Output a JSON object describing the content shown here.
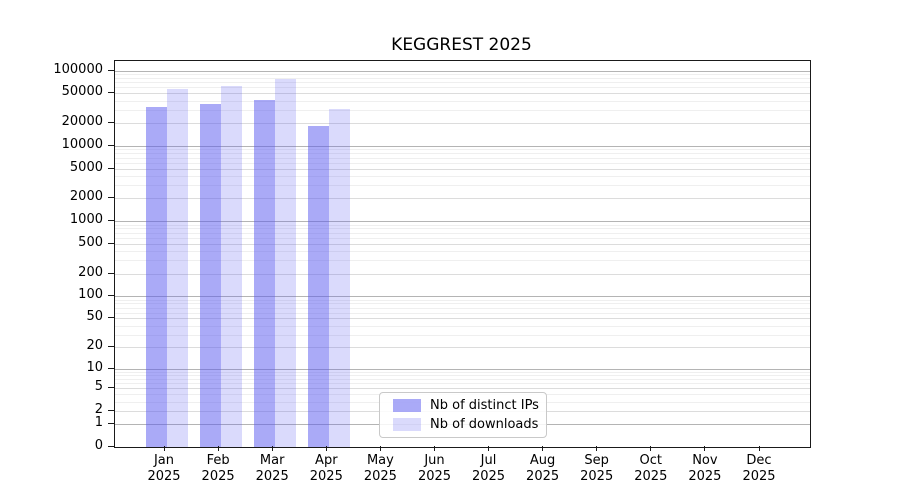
{
  "chart_data": {
    "type": "bar",
    "title": "KEGGREST 2025",
    "categories": [
      "Jan",
      "Feb",
      "Mar",
      "Apr",
      "May",
      "Jun",
      "Jul",
      "Aug",
      "Sep",
      "Oct",
      "Nov",
      "Dec"
    ],
    "x_tick_year": "2025",
    "series": [
      {
        "name": "Nb of distinct IPs",
        "color": "rgba(85,85,240,0.50)",
        "values": [
          33000,
          36000,
          40500,
          18400,
          null,
          null,
          null,
          null,
          null,
          null,
          null,
          null
        ]
      },
      {
        "name": "Nb of downloads",
        "color": "rgba(85,85,240,0.22)",
        "values": [
          56000,
          63000,
          78000,
          30500,
          null,
          null,
          null,
          null,
          null,
          null,
          null,
          null
        ]
      }
    ],
    "y_axis": {
      "scale": "log1p",
      "tick_values": [
        100000,
        50000,
        20000,
        10000,
        5000,
        2000,
        1000,
        500,
        200,
        100,
        50,
        20,
        10,
        5,
        2,
        1,
        0
      ],
      "tick_labels": [
        "100000",
        "50000",
        "20000",
        "10000",
        "5000",
        "2000",
        "1000",
        "500",
        "200",
        "100",
        "50",
        "20",
        "10",
        "5",
        "2",
        "1",
        "0"
      ],
      "max_exp": 5.126,
      "grid": true
    },
    "legend": {
      "position": "inside-bottom-center"
    }
  },
  "colors": {
    "bar_distinct_ips_flat": "#aaaaf7",
    "bar_downloads_flat": "#d9d9fb",
    "grid_power10": "#b4b4b4",
    "grid_labeled": "#dcdcdc",
    "grid_minor": "#efefef",
    "axis": "#1a1a1a"
  }
}
